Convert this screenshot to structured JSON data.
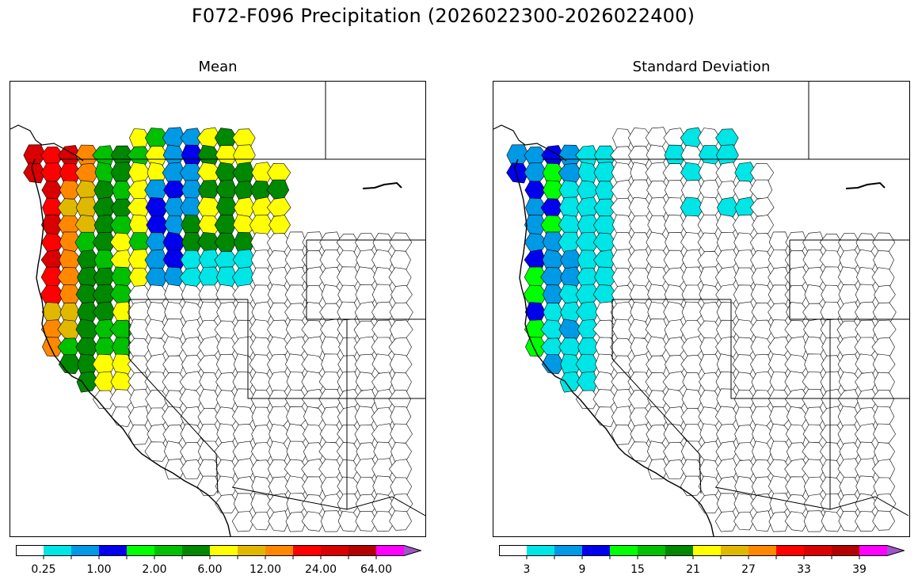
{
  "figure": {
    "title": "F072-F096 Precipitation (2026022300-2026022400)"
  },
  "panels": [
    {
      "title": "Mean",
      "colorbar": {
        "colors": [
          "#ffffff",
          "#00e5e5",
          "#0099e5",
          "#0000ee",
          "#00ff00",
          "#00c000",
          "#008800",
          "#ffff00",
          "#e0b800",
          "#ff8800",
          "#ff0000",
          "#d80000",
          "#b40000",
          "#ff00ff",
          "#9f55c8"
        ],
        "tick_labels": [
          "0.25",
          "1.00",
          "2.00",
          "6.00",
          "12.00",
          "24.00",
          "64.00"
        ],
        "extend": "max"
      }
    },
    {
      "title": "Standard Deviation",
      "colorbar": {
        "colors": [
          "#ffffff",
          "#00e5e5",
          "#0099e5",
          "#0000ee",
          "#00ff00",
          "#00c000",
          "#008800",
          "#ffff00",
          "#e0b800",
          "#ff8800",
          "#ff0000",
          "#d80000",
          "#b40000",
          "#ff00ff",
          "#9f55c8"
        ],
        "tick_labels": [
          "3",
          "9",
          "15",
          "21",
          "27",
          "33",
          "39"
        ],
        "extend": "max"
      }
    }
  ]
}
